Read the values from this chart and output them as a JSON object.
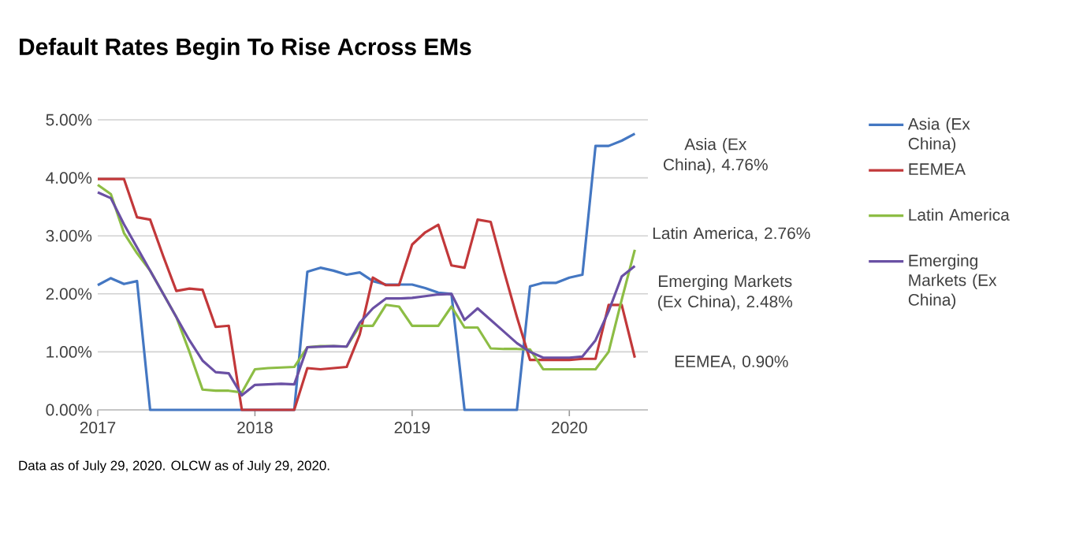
{
  "chart_data": {
    "type": "line",
    "title": "Default Rates Begin To Rise Across EMs",
    "x": [
      "2017-01",
      "2017-02",
      "2017-03",
      "2017-04",
      "2017-05",
      "2017-06",
      "2017-07",
      "2017-08",
      "2017-09",
      "2017-10",
      "2017-11",
      "2017-12",
      "2018-01",
      "2018-02",
      "2018-03",
      "2018-04",
      "2018-05",
      "2018-06",
      "2018-07",
      "2018-08",
      "2018-09",
      "2018-10",
      "2018-11",
      "2018-12",
      "2019-01",
      "2019-02",
      "2019-03",
      "2019-04",
      "2019-05",
      "2019-06",
      "2019-07",
      "2019-08",
      "2019-09",
      "2019-10",
      "2019-11",
      "2019-12",
      "2020-01",
      "2020-02",
      "2020-03",
      "2020-04",
      "2020-05",
      "2020-06"
    ],
    "series": [
      {
        "name": "Asia (Ex China)",
        "color": "#4477c2",
        "values": [
          2.15,
          2.27,
          2.17,
          2.22,
          0,
          0,
          0,
          0,
          0,
          0,
          0,
          0,
          0,
          0,
          0,
          0,
          2.38,
          2.45,
          2.4,
          2.33,
          2.37,
          2.22,
          2.16,
          2.16,
          2.16,
          2.1,
          2.02,
          2.0,
          0,
          0,
          0,
          0,
          0,
          2.13,
          2.19,
          2.19,
          2.28,
          2.33,
          4.55,
          4.55,
          4.64,
          4.76
        ]
      },
      {
        "name": "EEMEA",
        "color": "#c2383a",
        "values": [
          3.98,
          3.98,
          3.98,
          3.32,
          3.28,
          2.65,
          2.05,
          2.09,
          2.07,
          1.43,
          1.45,
          0,
          0,
          0,
          0,
          0,
          0.72,
          0.7,
          0.72,
          0.74,
          1.3,
          2.28,
          2.15,
          2.15,
          2.85,
          3.06,
          3.19,
          2.49,
          2.45,
          3.28,
          3.24,
          2.4,
          1.6,
          0.86,
          0.86,
          0.86,
          0.86,
          0.88,
          0.88,
          1.81,
          1.81,
          0.9
        ]
      },
      {
        "name": "Latin America",
        "color": "#8dbd45",
        "values": [
          3.88,
          3.72,
          3.05,
          2.7,
          2.4,
          2.0,
          1.6,
          1.0,
          0.35,
          0.33,
          0.33,
          0.3,
          0.7,
          0.72,
          0.73,
          0.74,
          1.08,
          1.1,
          1.1,
          1.09,
          1.45,
          1.45,
          1.81,
          1.78,
          1.45,
          1.45,
          1.45,
          1.78,
          1.42,
          1.42,
          1.06,
          1.05,
          1.05,
          1.04,
          0.7,
          0.7,
          0.7,
          0.7,
          0.7,
          1.0,
          1.9,
          2.76
        ]
      },
      {
        "name": "Emerging Markets (Ex China)",
        "color": "#6a50a4",
        "values": [
          3.75,
          3.65,
          3.2,
          2.8,
          2.4,
          2.0,
          1.6,
          1.2,
          0.85,
          0.65,
          0.63,
          0.25,
          0.43,
          0.44,
          0.45,
          0.44,
          1.08,
          1.09,
          1.1,
          1.09,
          1.5,
          1.75,
          1.92,
          1.92,
          1.93,
          1.96,
          1.99,
          2.0,
          1.55,
          1.75,
          1.55,
          1.35,
          1.15,
          1.0,
          0.9,
          0.9,
          0.9,
          0.92,
          1.2,
          1.7,
          2.3,
          2.48
        ]
      }
    ],
    "xlim": [
      "2017-01",
      "2020-07"
    ],
    "xticks": [
      "2017",
      "2018",
      "2019",
      "2020"
    ],
    "ylim": [
      0,
      5
    ],
    "yticks": [
      {
        "value": 0,
        "label": "0.00%"
      },
      {
        "value": 1,
        "label": "1.00%"
      },
      {
        "value": 2,
        "label": "2.00%"
      },
      {
        "value": 3,
        "label": "3.00%"
      },
      {
        "value": 4,
        "label": "4.00%"
      },
      {
        "value": 5,
        "label": "5.00%"
      }
    ],
    "grid": "y",
    "legend": "right",
    "annotations": [
      "Data as of July 29, 2020. OLCW as of July 29, 2020.",
      {
        "text": "Asia (Ex China), 4.76%",
        "x": "2020-06",
        "y": 4.76
      },
      {
        "text": "Latin America, 2.76%",
        "x": "2020-06",
        "y": 2.76
      },
      {
        "text": "Emerging Markets (Ex China), 2.48%",
        "x": "2020-06",
        "y": 2.48
      },
      {
        "text": "EEMEA, 0.90%",
        "x": "2020-06",
        "y": 0.9
      }
    ]
  }
}
